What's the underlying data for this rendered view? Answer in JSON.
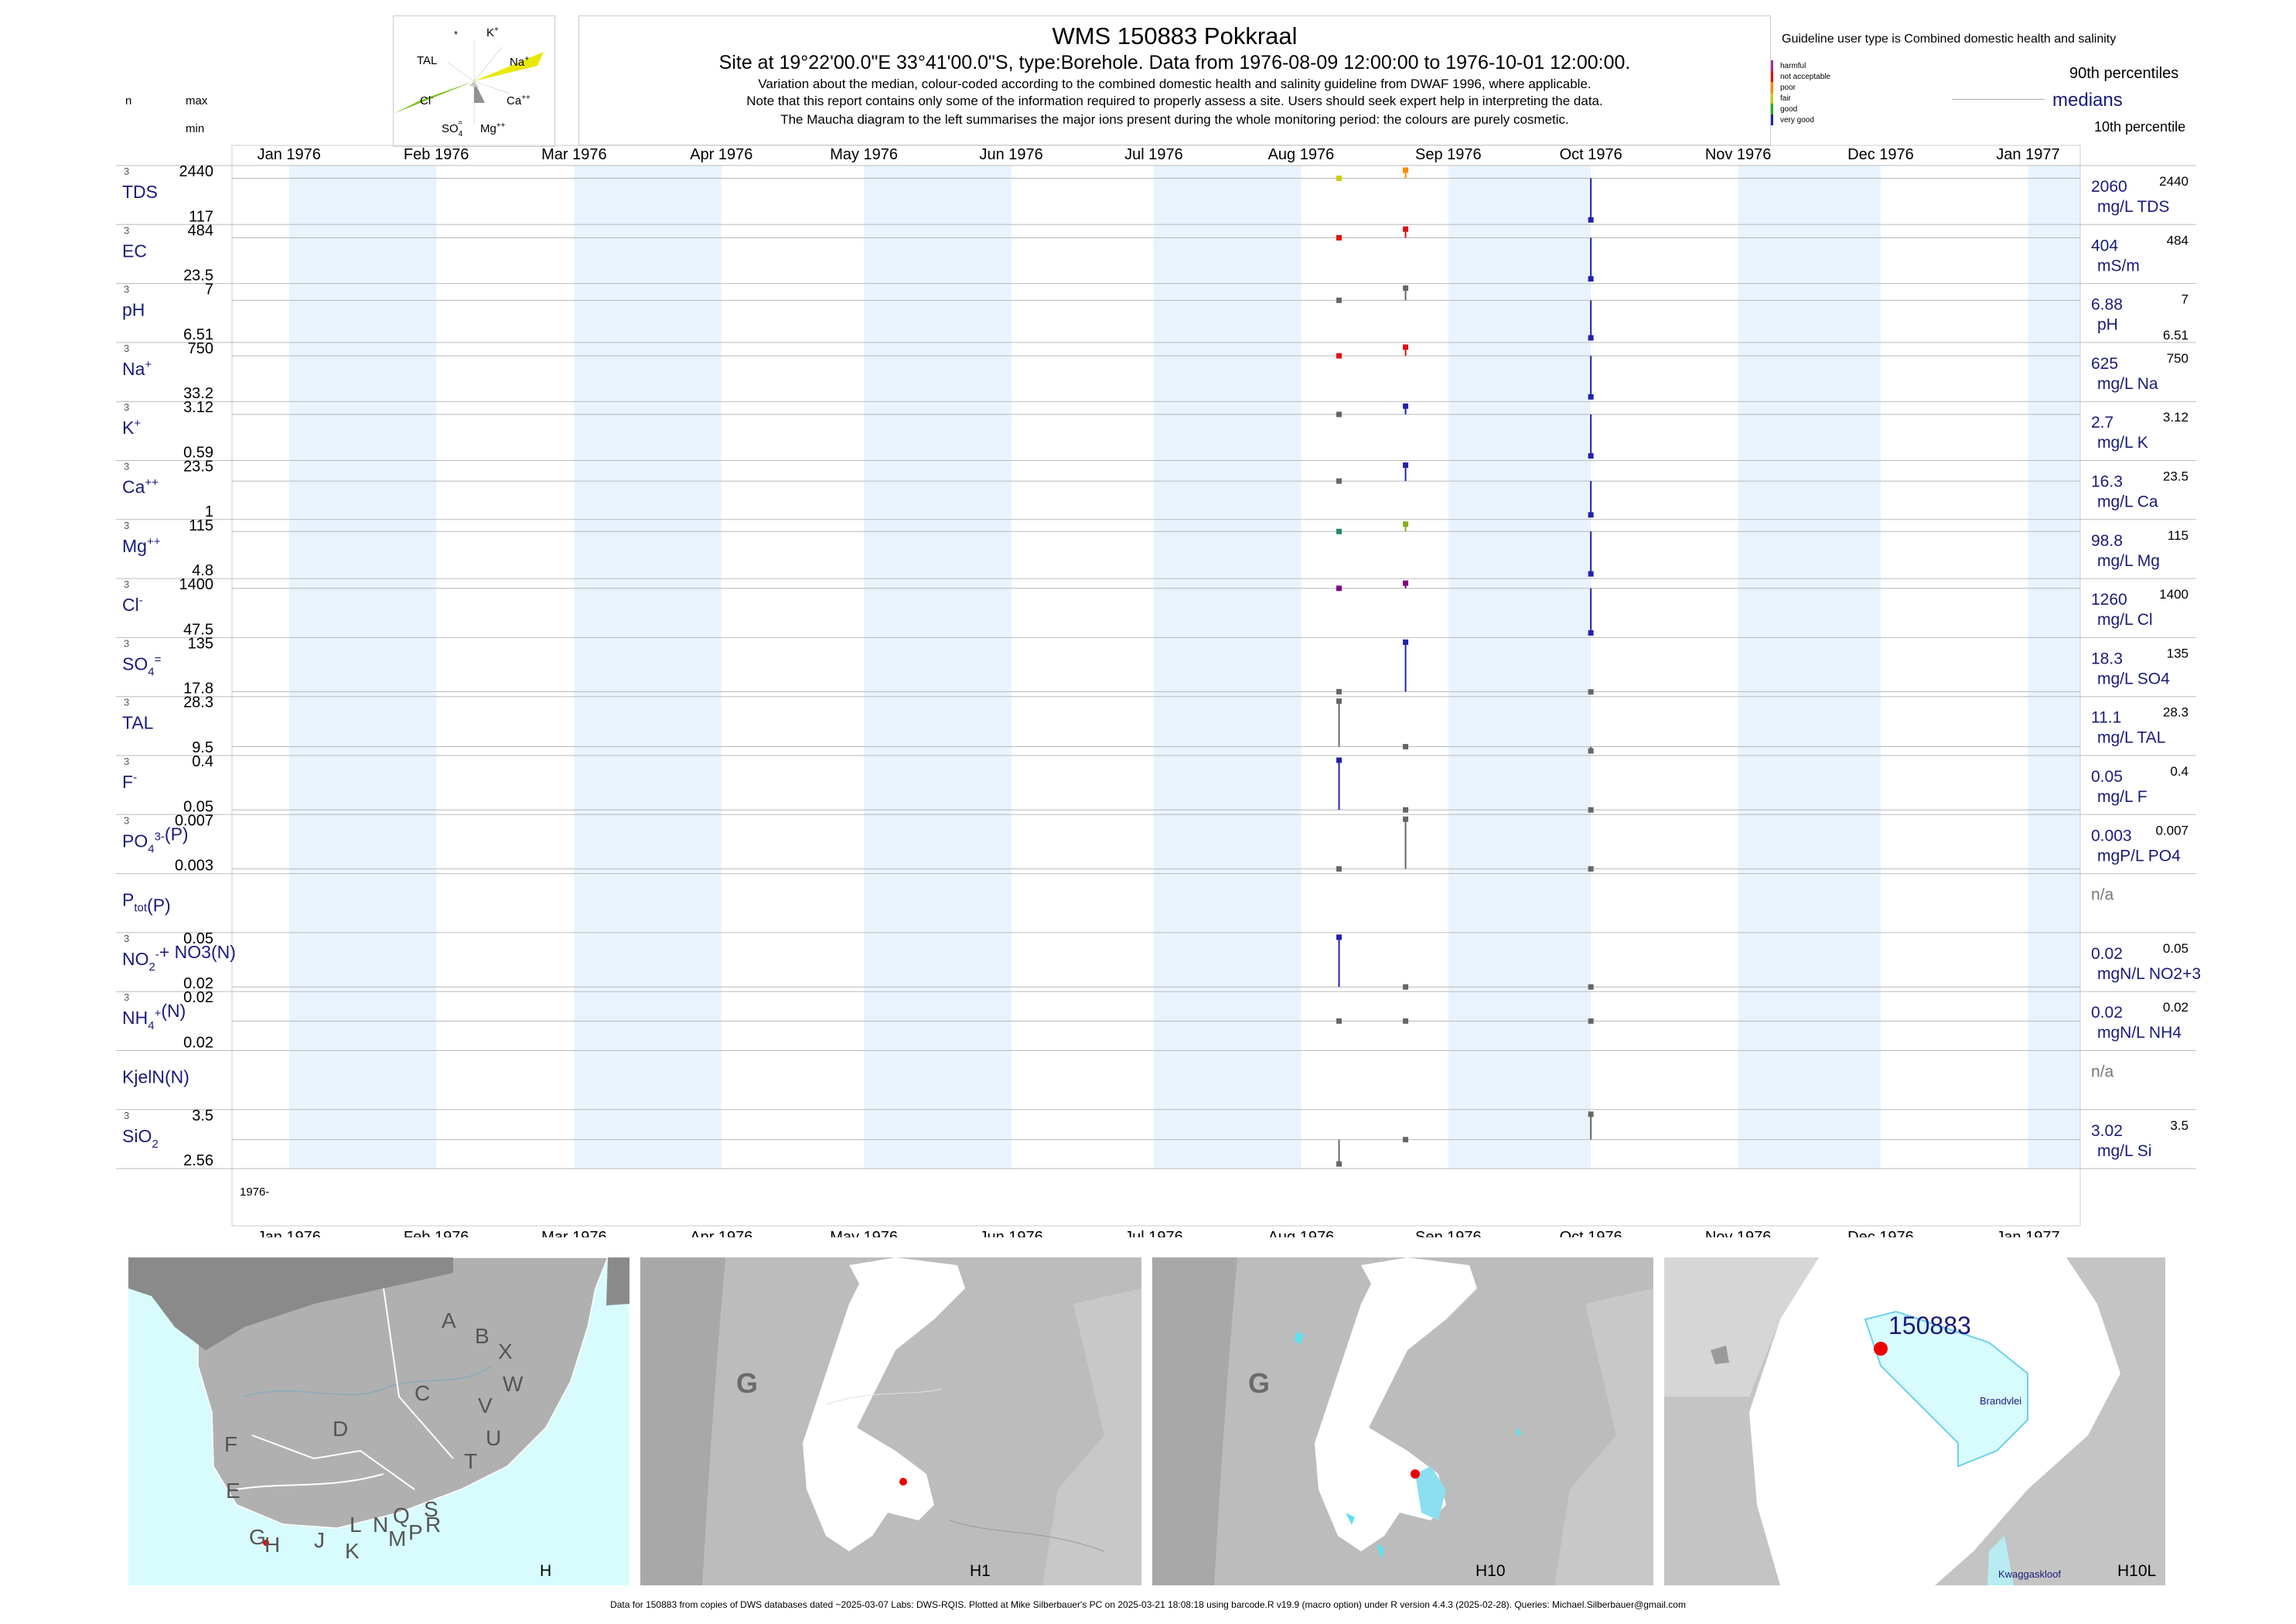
{
  "header": {
    "title": "WMS 150883  Pokkraal",
    "subtitle": "Site at 19°22'00.0\"E 33°41'00.0\"S, type:Borehole.  Data from 1976-08-09 12:00:00 to 1976-10-01 12:00:00.",
    "note1": "Variation about the median,  colour-coded according to the combined domestic health and salinity guideline from DWAF 1996, where applicable.",
    "note2": "Note that this report contains only some of the information required to properly assess a site. Users should seek expert help in interpreting the data.",
    "note3": "The Maucha diagram to the left summarises the major ions present during the whole monitoring period: the colours are purely cosmetic."
  },
  "left_header": {
    "n": "n",
    "max": "max",
    "min": "min"
  },
  "maucha": {
    "labels": {
      "star": "*",
      "k": "K",
      "k_sup": "+",
      "tal": "TAL",
      "na": "Na",
      "na_sup": "+",
      "cl": "Cl",
      "cl_sup": "-",
      "ca": "Ca",
      "ca_sup": "++",
      "so4": "SO",
      "so4_sub": "4",
      "so4_sup": "=",
      "mg": "Mg",
      "mg_sup": "++"
    },
    "colors": {
      "na": "#e8e800",
      "cl": "#80c020",
      "ca": "#909090"
    }
  },
  "legend": {
    "guideline_text": "Guideline user type is Combined domestic health and salinity",
    "classes": [
      {
        "label": "harmful",
        "color": "#9b30a0"
      },
      {
        "label": "not acceptable",
        "color": "#dd1111"
      },
      {
        "label": "poor",
        "color": "#ff8800"
      },
      {
        "label": "fair",
        "color": "#cccc00"
      },
      {
        "label": "good",
        "color": "#22aa22"
      },
      {
        "label": "very good",
        "color": "#2222aa"
      }
    ],
    "p90": "90th percentiles",
    "medians": "medians",
    "p10": "10th percentile"
  },
  "months": [
    "Jan 1976",
    "Feb 1976",
    "Mar 1976",
    "Apr 1976",
    "May 1976",
    "Jun 1976",
    "Jul 1976",
    "Aug 1976",
    "Sep 1976",
    "Oct 1976",
    "Nov 1976",
    "Dec 1976",
    "Jan 1977"
  ],
  "year_label": "1976-",
  "chart_data": {
    "type": "scatter",
    "x_range": [
      "1975-12-20",
      "1977-01-12"
    ],
    "sample_dates": [
      "1976-08-09",
      "1976-08-23",
      "1976-10-01"
    ],
    "series": [
      {
        "name": "TDS",
        "n": "3",
        "max": "2440",
        "min": "117",
        "median": "2060",
        "unit": "mg/L TDS",
        "right_max": "2440",
        "right_min": "",
        "values": [
          2060,
          2440,
          117
        ],
        "colors": [
          "#cccc00",
          "#ff8800",
          "#2222aa"
        ]
      },
      {
        "name": "EC",
        "n": "3",
        "max": "484",
        "min": "23.5",
        "median": "404",
        "unit": "mS/m",
        "right_max": "484",
        "right_min": "",
        "values": [
          404,
          484,
          23.5
        ],
        "colors": [
          "#dd1111",
          "#dd1111",
          "#2222aa"
        ]
      },
      {
        "name": "pH",
        "n": "3",
        "max": "7",
        "min": "6.51",
        "median": "6.88",
        "unit": "pH",
        "right_max": "7",
        "right_min": "6.51",
        "values": [
          6.88,
          7,
          6.51
        ],
        "colors": [
          "#666666",
          "#666666",
          "#2222aa"
        ]
      },
      {
        "name": "Na",
        "sup": "+",
        "n": "3",
        "max": "750",
        "min": "33.2",
        "median": "625",
        "unit": "mg/L Na",
        "right_max": "750",
        "right_min": "",
        "values": [
          625,
          750,
          33.2
        ],
        "colors": [
          "#dd1111",
          "#dd1111",
          "#2222aa"
        ]
      },
      {
        "name": "K",
        "sup": "+",
        "n": "3",
        "max": "3.12",
        "min": "0.59",
        "median": "2.7",
        "unit": "mg/L K",
        "right_max": "3.12",
        "right_min": "",
        "values": [
          2.7,
          3.12,
          0.59
        ],
        "colors": [
          "#666666",
          "#2222aa",
          "#2222aa"
        ]
      },
      {
        "name": "Ca",
        "sup": "++",
        "n": "3",
        "max": "23.5",
        "min": "1",
        "median": "16.3",
        "unit": "mg/L Ca",
        "right_max": "23.5",
        "right_min": "",
        "values": [
          16.3,
          23.5,
          1
        ],
        "colors": [
          "#666666",
          "#2222aa",
          "#2222aa"
        ]
      },
      {
        "name": "Mg",
        "sup": "++",
        "n": "3",
        "max": "115",
        "min": "4.8",
        "median": "98.8",
        "unit": "mg/L Mg",
        "right_max": "115",
        "right_min": "",
        "values": [
          98.8,
          115,
          4.8
        ],
        "colors": [
          "#228866",
          "#88aa22",
          "#2222aa"
        ]
      },
      {
        "name": "Cl",
        "sup": "-",
        "n": "3",
        "max": "1400",
        "min": "47.5",
        "median": "1260",
        "unit": "mg/L Cl",
        "right_max": "1400",
        "right_min": "",
        "values": [
          1260,
          1400,
          47.5
        ],
        "colors": [
          "#800080",
          "#800080",
          "#2222aa"
        ]
      },
      {
        "name": "SO",
        "sub": "4",
        "sup": "=",
        "n": "3",
        "max": "135",
        "min": "17.8",
        "median": "18.3",
        "unit": "mg/L SO4",
        "right_max": "135",
        "right_min": "",
        "values": [
          18.3,
          135,
          17.8
        ],
        "colors": [
          "#666666",
          "#2222aa",
          "#666666"
        ]
      },
      {
        "name": "TAL",
        "n": "3",
        "max": "28.3",
        "min": "9.5",
        "median": "11.1",
        "unit": "mg/L TAL",
        "right_max": "28.3",
        "right_min": "",
        "values": [
          28.3,
          11.1,
          9.5
        ],
        "colors": [
          "#666666",
          "#666666",
          "#666666"
        ]
      },
      {
        "name": "F",
        "sup": "-",
        "n": "3",
        "max": "0.4",
        "min": "0.05",
        "median": "0.05",
        "unit": "mg/L F",
        "right_max": "0.4",
        "right_min": "",
        "values": [
          0.4,
          0.05,
          0.05
        ],
        "colors": [
          "#2222aa",
          "#666666",
          "#666666"
        ]
      },
      {
        "name": "PO",
        "sub": "4",
        "sup": "3-",
        "suffix": "(P)",
        "n": "3",
        "max": "0.007",
        "min": "0.003",
        "median": "0.003",
        "unit": "mgP/L PO4",
        "right_max": "0.007",
        "right_min": "",
        "values": [
          0.003,
          0.007,
          0.003
        ],
        "colors": [
          "#666666",
          "#666666",
          "#666666"
        ]
      },
      {
        "name": "P",
        "sub": "tot",
        "suffix": "(P)",
        "n": "",
        "max": "",
        "min": "",
        "median": "n/a",
        "unit": "",
        "right_max": "",
        "right_min": "",
        "values": [],
        "colors": []
      },
      {
        "name": "NO",
        "sub": "2",
        "sup": "-",
        "suffix": "+ NO3(N)",
        "n": "3",
        "max": "0.05",
        "min": "0.02",
        "median": "0.02",
        "unit": "mgN/L NO2+3",
        "right_max": "0.05",
        "right_min": "",
        "values": [
          0.05,
          0.02,
          0.02
        ],
        "colors": [
          "#2222aa",
          "#666666",
          "#666666"
        ]
      },
      {
        "name": "NH",
        "sub": "4",
        "sup": "+",
        "suffix": "(N)",
        "n": "3",
        "max": "0.02",
        "min": "0.02",
        "median": "0.02",
        "unit": "mgN/L NH4",
        "right_max": "0.02",
        "right_min": "",
        "values": [
          0.02,
          0.02,
          0.02
        ],
        "colors": [
          "#666666",
          "#666666",
          "#666666"
        ]
      },
      {
        "name": "KjelN(N)",
        "n": "",
        "max": "",
        "min": "",
        "median": "n/a",
        "unit": "",
        "right_max": "",
        "right_min": "",
        "values": [],
        "colors": []
      },
      {
        "name": "SiO",
        "sub": "2",
        "n": "3",
        "max": "3.5",
        "min": "2.56",
        "median": "3.02",
        "unit": "mg/L Si",
        "right_max": "3.5",
        "right_min": "",
        "values": [
          2.56,
          3.02,
          3.5
        ],
        "colors": [
          "#666666",
          "#666666",
          "#666666"
        ]
      }
    ]
  },
  "maps": [
    {
      "label": "H",
      "regions": [
        "A",
        "B",
        "X",
        "W",
        "C",
        "V",
        "U",
        "T",
        "D",
        "F",
        "E",
        "G",
        "H",
        "J",
        "K",
        "L",
        "N",
        "Q",
        "M",
        "P",
        "S",
        "R"
      ]
    },
    {
      "label": "H1",
      "region": "G"
    },
    {
      "label": "H10",
      "region": "G"
    },
    {
      "label": "H10L",
      "site": "150883",
      "lake": "Brandvlei",
      "place": "Kwaggaskloof"
    }
  ],
  "footer": "Data for 150883 from copies of DWS databases dated ~2025-03-07 Labs: DWS-RQIS. Plotted at Mike Silberbauer's PC on 2025-03-21 18:08:18 using barcode.R v19.9 (macro option) under R version 4.4.3 (2025-02-28). Queries: Michael.Silberbauer@gmail.com"
}
